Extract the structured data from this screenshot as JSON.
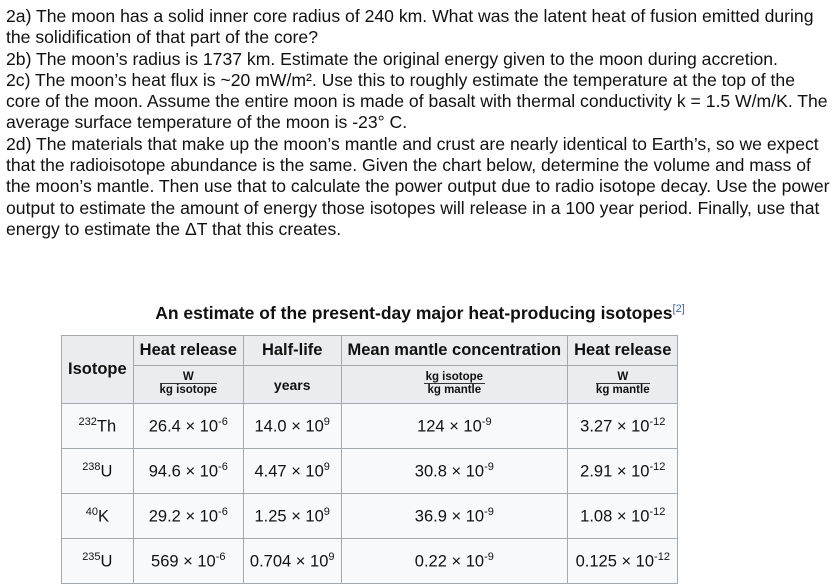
{
  "questions": [
    "2a) The moon has a solid inner core radius of 240 km. What was the latent heat of fusion emitted during the solidification of that part of the core?",
    "2b) The moon’s radius is 1737 km. Estimate the original energy given to the moon during accretion.",
    "2c) The moon’s heat flux is ~20 mW/m². Use this to roughly estimate the temperature at the top of the core of the moon. Assume the entire moon is made of basalt with thermal conductivity k = 1.5 W/m/K. The average surface temperature of the moon is -23° C.",
    "2d) The materials that make up the moon’s mantle and crust are nearly identical to Earth’s, so we expect that the radioisotope abundance is the same. Given the chart below, determine the volume and mass of the moon’s mantle. Then use that to calculate the power output due to radio isotope decay. Use the power output to estimate the amount of energy those isotopes will release in a 100 year period. Finally, use that energy to estimate the ΔT that this creates."
  ],
  "table": {
    "caption": "An estimate of the present-day major heat-producing isotopes",
    "caption_ref": "[2]",
    "headers": {
      "isotope": "Isotope",
      "heat_release": "Heat release",
      "half_life": "Half-life",
      "mantle_conc": "Mean mantle concentration",
      "heat_release2": "Heat release"
    },
    "units": {
      "heat_release_num": "W",
      "heat_release_den": "kg isotope",
      "half_life": "years",
      "mantle_conc_num": "kg isotope",
      "mantle_conc_den": "kg mantle",
      "heat_release2_num": "W",
      "heat_release2_den": "kg mantle"
    },
    "rows": [
      {
        "mass": "232",
        "el": "Th",
        "heat": "26.4",
        "heat_exp": "-6",
        "half": "14.0",
        "half_exp": "9",
        "conc": "124",
        "conc_exp": "-9",
        "hr": "3.27",
        "hr_exp": "-12"
      },
      {
        "mass": "238",
        "el": "U",
        "heat": "94.6",
        "heat_exp": "-6",
        "half": "4.47",
        "half_exp": "9",
        "conc": "30.8",
        "conc_exp": "-9",
        "hr": "2.91",
        "hr_exp": "-12"
      },
      {
        "mass": "40",
        "el": "K",
        "heat": "29.2",
        "heat_exp": "-6",
        "half": "1.25",
        "half_exp": "9",
        "conc": "36.9",
        "conc_exp": "-9",
        "hr": "1.08",
        "hr_exp": "-12"
      },
      {
        "mass": "235",
        "el": "U",
        "heat": "569",
        "heat_exp": "-6",
        "half": "0.704",
        "half_exp": "9",
        "conc": "0.22",
        "conc_exp": "-9",
        "hr": "0.125",
        "hr_exp": "-12"
      }
    ]
  }
}
